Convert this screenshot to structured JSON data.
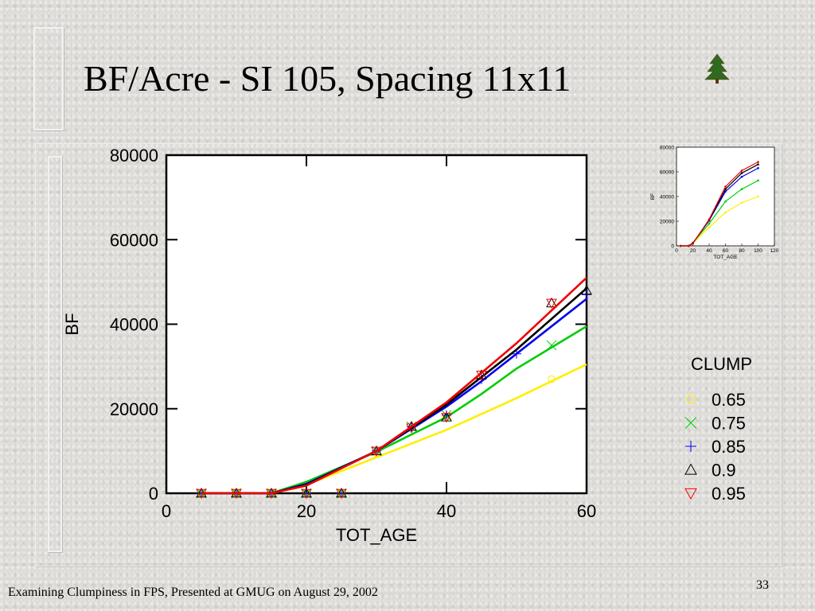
{
  "slide": {
    "title": "BF/Acre - SI 105, Spacing 11x11",
    "footer": "Examining Clumpiness in FPS, Presented at GMUG on August 29, 2002",
    "page_number": "33",
    "logo_icon": "pine-tree-icon"
  },
  "chart_data": [
    {
      "type": "line",
      "xlabel": "TOT_AGE",
      "ylabel": "BF",
      "xlim": [
        0,
        60
      ],
      "ylim": [
        0,
        80000
      ],
      "x_ticks": [
        "0",
        "20",
        "40",
        "60"
      ],
      "y_ticks": [
        "0",
        "20000",
        "40000",
        "60000",
        "80000"
      ],
      "legend": {
        "title": "CLUMP",
        "placement": "right"
      },
      "series": [
        {
          "name": "0.65",
          "color": "#ffee00",
          "marker": "circle",
          "line": {
            "x": [
              5,
              15,
              20,
              30,
              40,
              50,
              60
            ],
            "y": [
              0,
              0,
              2000,
              8500,
              15000,
              22500,
              30500
            ]
          },
          "points": {
            "x": [
              5,
              10,
              15,
              20,
              25,
              30,
              40,
              55
            ],
            "y": [
              0,
              0,
              0,
              0,
              0,
              9500,
              18000,
              27000
            ]
          }
        },
        {
          "name": "0.75",
          "color": "#00cc00",
          "marker": "x",
          "line": {
            "x": [
              5,
              15,
              20,
              30,
              40,
              45,
              50,
              60
            ],
            "y": [
              0,
              0,
              2700,
              9800,
              18000,
              23500,
              29500,
              39500
            ]
          },
          "points": {
            "x": [
              5,
              10,
              15,
              20,
              25,
              30,
              35,
              40,
              55
            ],
            "y": [
              0,
              0,
              0,
              0,
              0,
              10000,
              15800,
              18500,
              35000
            ]
          }
        },
        {
          "name": "0.85",
          "color": "#0000ee",
          "marker": "plus",
          "line": {
            "x": [
              5,
              15,
              20,
              30,
              40,
              45,
              50,
              60
            ],
            "y": [
              0,
              0,
              2200,
              10000,
              20500,
              26500,
              33000,
              46000
            ]
          },
          "points": {
            "x": [
              5,
              10,
              15,
              20,
              25,
              30,
              35,
              40,
              45,
              50,
              60
            ],
            "y": [
              0,
              0,
              0,
              0,
              0,
              10000,
              15800,
              18500,
              27000,
              33000,
              47000
            ]
          }
        },
        {
          "name": "0.9",
          "color": "#000000",
          "marker": "triangle-up",
          "line": {
            "x": [
              5,
              15,
              20,
              30,
              40,
              50,
              60
            ],
            "y": [
              0,
              0,
              2000,
              10000,
              21000,
              34000,
              48500
            ]
          },
          "points": {
            "x": [
              5,
              10,
              15,
              20,
              25,
              30,
              35,
              40,
              45,
              55,
              60
            ],
            "y": [
              0,
              0,
              0,
              0,
              0,
              10000,
              15800,
              18000,
              28000,
              45000,
              48000
            ]
          }
        },
        {
          "name": "0.95",
          "color": "#ee0000",
          "marker": "triangle-down",
          "line": {
            "x": [
              5,
              15,
              20,
              30,
              40,
              50,
              60
            ],
            "y": [
              0,
              0,
              1800,
              10000,
              21500,
              35500,
              51000
            ]
          },
          "points": {
            "x": [
              5,
              10,
              15,
              20,
              25,
              30,
              35,
              40,
              45,
              55
            ],
            "y": [
              0,
              0,
              0,
              0,
              0,
              10000,
              15500,
              18000,
              28000,
              45000
            ]
          }
        }
      ]
    },
    {
      "type": "line",
      "xlabel": "TOT_AGE",
      "ylabel": "BF",
      "xlim": [
        0,
        120
      ],
      "ylim": [
        0,
        80000
      ],
      "x_ticks": [
        "0",
        "20",
        "40",
        "60",
        "80",
        "100",
        "120"
      ],
      "y_ticks": [
        "0",
        "20000",
        "40000",
        "60000",
        "80000"
      ],
      "series": [
        {
          "color": "#ffee00",
          "x": [
            5,
            15,
            20,
            40,
            60,
            80,
            100
          ],
          "y": [
            0,
            0,
            2000,
            15000,
            27000,
            35000,
            40000
          ]
        },
        {
          "color": "#00cc00",
          "x": [
            5,
            15,
            20,
            40,
            60,
            80,
            100
          ],
          "y": [
            0,
            0,
            2500,
            18000,
            36000,
            46000,
            53000
          ]
        },
        {
          "color": "#0000ee",
          "x": [
            5,
            15,
            20,
            40,
            60,
            80,
            100
          ],
          "y": [
            0,
            0,
            2200,
            20500,
            44000,
            56000,
            63000
          ]
        },
        {
          "color": "#000000",
          "x": [
            5,
            15,
            20,
            40,
            60,
            80,
            100
          ],
          "y": [
            0,
            0,
            2000,
            21000,
            46000,
            59000,
            66000
          ]
        },
        {
          "color": "#ee0000",
          "x": [
            5,
            15,
            20,
            40,
            60,
            80,
            100
          ],
          "y": [
            0,
            0,
            1800,
            21500,
            48000,
            61000,
            68000
          ]
        }
      ]
    }
  ]
}
